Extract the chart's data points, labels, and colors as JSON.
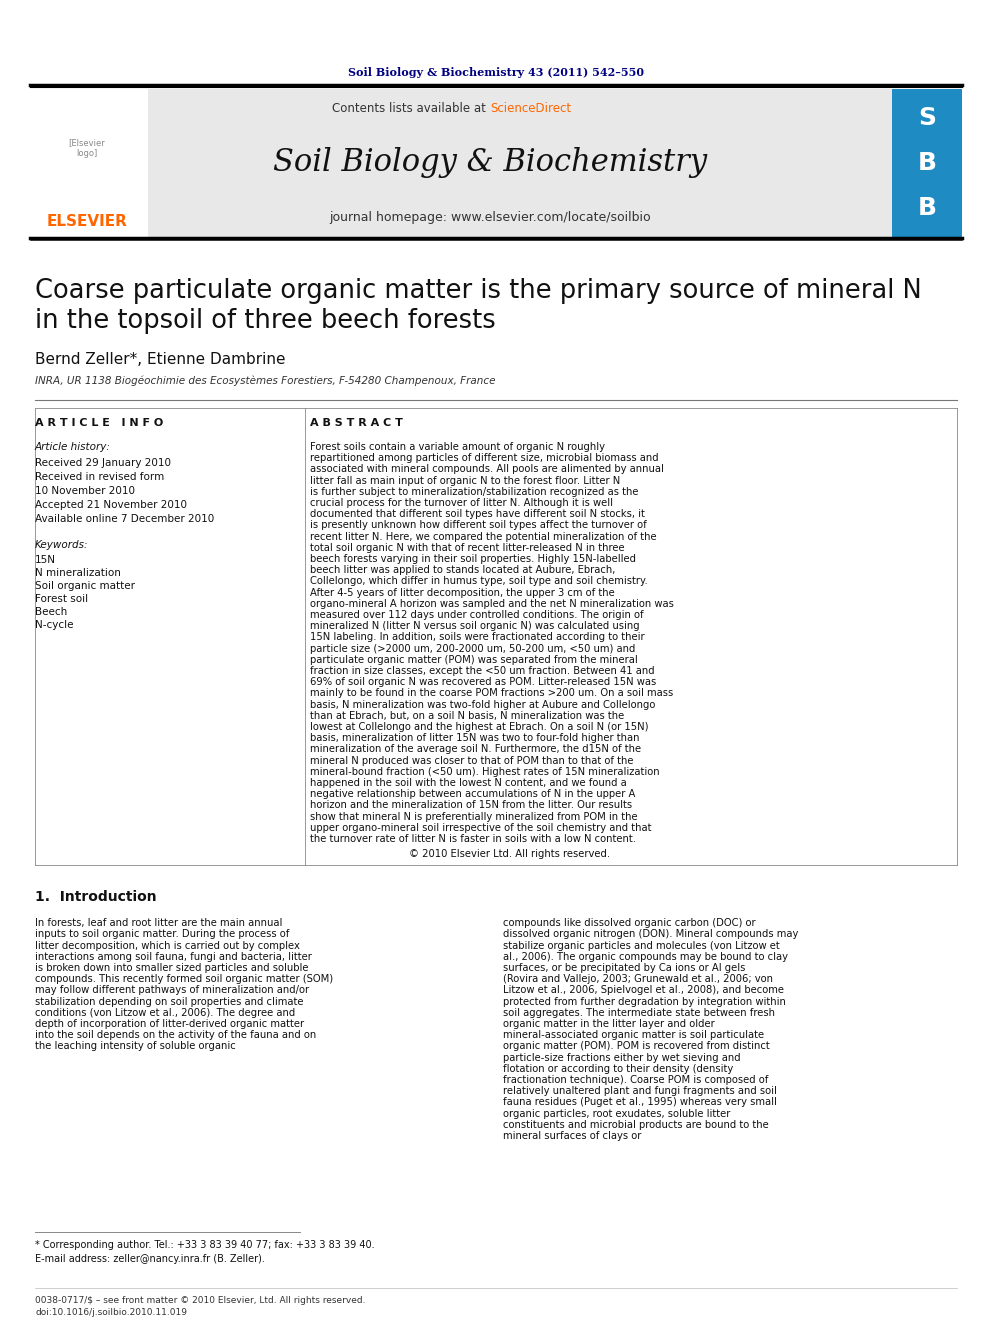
{
  "page_color": "#ffffff",
  "header_line_color": "#000000",
  "journal_ref": "Soil Biology & Biochemistry 43 (2011) 542–550",
  "journal_ref_color": "#000080",
  "journal_name": "Soil Biology & Biochemistry",
  "journal_homepage": "journal homepage: www.elsevier.com/locate/soilbio",
  "contents_text": "Contents lists available at ",
  "sciencedirect_text": "ScienceDirect",
  "sciencedirect_color": "#ff6600",
  "elsevier_color": "#ff6600",
  "header_bg": "#e8e8e8",
  "article_title": "Coarse particulate organic matter is the primary source of mineral N\nin the topsoil of three beech forests",
  "authors": "Bernd Zeller*, Etienne Dambrine",
  "affiliation": "INRA, UR 1138 Biogéochimie des Ecosystèmes Forestiers, F-54280 Champenoux, France",
  "article_info_header": "A R T I C L E   I N F O",
  "abstract_header": "A B S T R A C T",
  "article_history_label": "Article history:",
  "received_1": "Received 29 January 2010",
  "received_revised": "Received in revised form",
  "received_revised_date": "10 November 2010",
  "accepted": "Accepted 21 November 2010",
  "available": "Available online 7 December 2010",
  "keywords_label": "Keywords:",
  "keyword_1": "15N",
  "keyword_2": "N mineralization",
  "keyword_3": "Soil organic matter",
  "keyword_4": "Forest soil",
  "keyword_5": "Beech",
  "keyword_6": "N-cycle",
  "abstract_text": "Forest soils contain a variable amount of organic N roughly repartitioned among particles of different size, microbial biomass and associated with mineral compounds. All pools are alimented by annual litter fall as main input of organic N to the forest floor. Litter N is further subject to mineralization/stabilization recognized as the crucial process for the turnover of litter N. Although it is well documented that different soil types have different soil N stocks, it is presently unknown how different soil types affect the turnover of recent litter N. Here, we compared the potential mineralization of the total soil organic N with that of recent litter-released N in three beech forests varying in their soil properties. Highly 15N-labelled beech litter was applied to stands located at Aubure, Ebrach, Collelongo, which differ in humus type, soil type and soil chemistry. After 4-5 years of litter decomposition, the upper 3 cm of the organo-mineral A horizon was sampled and the net N mineralization was measured over 112 days under controlled conditions. The origin of mineralized N (litter N versus soil organic N) was calculated using 15N labeling. In addition, soils were fractionated according to their particle size (>2000 um, 200-2000 um, 50-200 um, <50 um) and particulate organic matter (POM) was separated from the mineral fraction in size classes, except the <50 um fraction. Between 41 and 69% of soil organic N was recovered as POM. Litter-released 15N was mainly to be found in the coarse POM fractions >200 um. On a soil mass basis, N mineralization was two-fold higher at Aubure and Collelongo than at Ebrach, but, on a soil N basis, N mineralization was the lowest at Collelongo and the highest at Ebrach. On a soil N (or 15N) basis, mineralization of litter 15N was two to four-fold higher than mineralization of the average soil N. Furthermore, the d15N of the mineral N produced was closer to that of POM than to that of the mineral-bound fraction (<50 um). Highest rates of 15N mineralization happened in the soil with the lowest N content, and we found a negative relationship between accumulations of N in the upper A horizon and the mineralization of 15N from the litter. Our results show that mineral N is preferentially mineralized from POM in the upper organo-mineral soil irrespective of the soil chemistry and that the turnover rate of litter N is faster in soils with a low N content.",
  "copyright_text": "© 2010 Elsevier Ltd. All rights reserved.",
  "intro_header": "1.  Introduction",
  "intro_indent": "    In forests, leaf and root litter are the main annual inputs to soil organic matter. During the process of litter decomposition, which is carried out by complex interactions among soil fauna, fungi and bacteria, litter is broken down into smaller sized particles and soluble compounds. This recently formed soil organic matter (SOM) may follow different pathways of mineralization and/or stabilization depending on soil properties and climate conditions (von Litzow et al., 2006). The degree and depth of incorporation of litter-derived organic matter into the soil depends on the activity of the fauna and on the leaching intensity of soluble organic",
  "intro_col2": "compounds like dissolved organic carbon (DOC) or dissolved organic nitrogen (DON). Mineral compounds may stabilize organic particles and molecules (von Litzow et al., 2006). The organic compounds may be bound to clay surfaces, or be precipitated by Ca ions or Al gels (Rovira and Vallejo, 2003; Grunewald et al., 2006; von Litzow et al., 2006, Spielvogel et al., 2008), and become protected from further degradation by integration within soil aggregates. The intermediate state between fresh organic matter in the litter layer and older mineral-associated organic matter is soil particulate organic matter (POM). POM is recovered from distinct particle-size fractions either by wet sieving and flotation or according to their density (density fractionation technique). Coarse POM is composed of relatively unaltered plant and fungi fragments and soil fauna residues (Puget et al., 1995) whereas very small organic particles, root exudates, soluble litter constituents and microbial products are bound to the mineral surfaces of clays or",
  "footer_text_left": "0038-0717/$ – see front matter © 2010 Elsevier, Ltd. All rights reserved.",
  "footer_text_doi": "doi:10.1016/j.soilbio.2010.11.019",
  "footnote_text": "* Corresponding author. Tel.: +33 3 83 39 40 77; fax: +33 3 83 39 40.",
  "footnote_email": "E-mail address: zeller@nancy.inra.fr (B. Zeller)."
}
